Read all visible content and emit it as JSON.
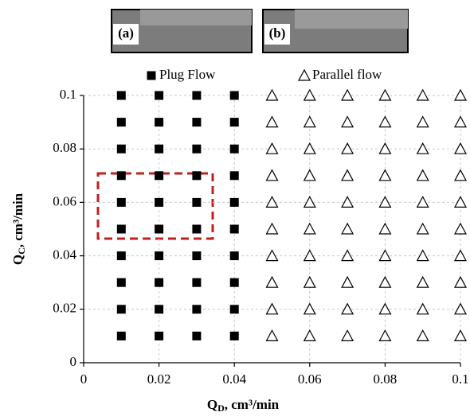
{
  "chart_data": {
    "type": "scatter",
    "annotations": [
      "(a)",
      "(b)"
    ],
    "xlabel": [
      "Q",
      "D",
      ", cm³/min"
    ],
    "ylabel": [
      "Q",
      "C",
      ", cm³/min"
    ],
    "xlim": [
      0,
      0.1
    ],
    "ylim": [
      0,
      0.1
    ],
    "xticks": [
      0,
      0.02,
      0.04,
      0.06,
      0.08,
      0.1
    ],
    "yticks": [
      0,
      0.02,
      0.04,
      0.06,
      0.08,
      0.1
    ],
    "grid": true,
    "legend": "top",
    "series": [
      {
        "name": "Plug Flow",
        "color": "#000000",
        "marker": "square",
        "x": [
          0.01,
          0.01,
          0.01,
          0.01,
          0.01,
          0.01,
          0.01,
          0.01,
          0.01,
          0.01,
          0.02,
          0.02,
          0.02,
          0.02,
          0.02,
          0.02,
          0.02,
          0.02,
          0.02,
          0.02,
          0.03,
          0.03,
          0.03,
          0.03,
          0.03,
          0.03,
          0.03,
          0.03,
          0.03,
          0.03,
          0.04,
          0.04,
          0.04,
          0.04,
          0.04,
          0.04,
          0.04,
          0.04,
          0.04,
          0.04
        ],
        "values": [
          0.01,
          0.02,
          0.03,
          0.04,
          0.05,
          0.06,
          0.07,
          0.08,
          0.09,
          0.1,
          0.01,
          0.02,
          0.03,
          0.04,
          0.05,
          0.06,
          0.07,
          0.08,
          0.09,
          0.1,
          0.01,
          0.02,
          0.03,
          0.04,
          0.05,
          0.06,
          0.07,
          0.08,
          0.09,
          0.1,
          0.01,
          0.02,
          0.03,
          0.04,
          0.05,
          0.06,
          0.07,
          0.08,
          0.09,
          0.1
        ]
      },
      {
        "name": "Parallel flow",
        "color": "#000000",
        "marker": "triangle",
        "x": [
          0.05,
          0.05,
          0.05,
          0.05,
          0.05,
          0.05,
          0.05,
          0.05,
          0.05,
          0.05,
          0.06,
          0.06,
          0.06,
          0.06,
          0.06,
          0.06,
          0.06,
          0.06,
          0.06,
          0.06,
          0.07,
          0.07,
          0.07,
          0.07,
          0.07,
          0.07,
          0.07,
          0.07,
          0.07,
          0.07,
          0.08,
          0.08,
          0.08,
          0.08,
          0.08,
          0.08,
          0.08,
          0.08,
          0.08,
          0.08,
          0.09,
          0.09,
          0.09,
          0.09,
          0.09,
          0.09,
          0.09,
          0.09,
          0.09,
          0.09,
          0.1,
          0.1,
          0.1,
          0.1,
          0.1,
          0.1,
          0.1,
          0.1,
          0.1,
          0.1
        ],
        "values": [
          0.01,
          0.02,
          0.03,
          0.04,
          0.05,
          0.06,
          0.07,
          0.08,
          0.09,
          0.1,
          0.01,
          0.02,
          0.03,
          0.04,
          0.05,
          0.06,
          0.07,
          0.08,
          0.09,
          0.1,
          0.01,
          0.02,
          0.03,
          0.04,
          0.05,
          0.06,
          0.07,
          0.08,
          0.09,
          0.1,
          0.01,
          0.02,
          0.03,
          0.04,
          0.05,
          0.06,
          0.07,
          0.08,
          0.09,
          0.1,
          0.01,
          0.02,
          0.03,
          0.04,
          0.05,
          0.06,
          0.07,
          0.08,
          0.09,
          0.1,
          0.01,
          0.02,
          0.03,
          0.04,
          0.05,
          0.06,
          0.07,
          0.08,
          0.09,
          0.1
        ]
      }
    ]
  }
}
